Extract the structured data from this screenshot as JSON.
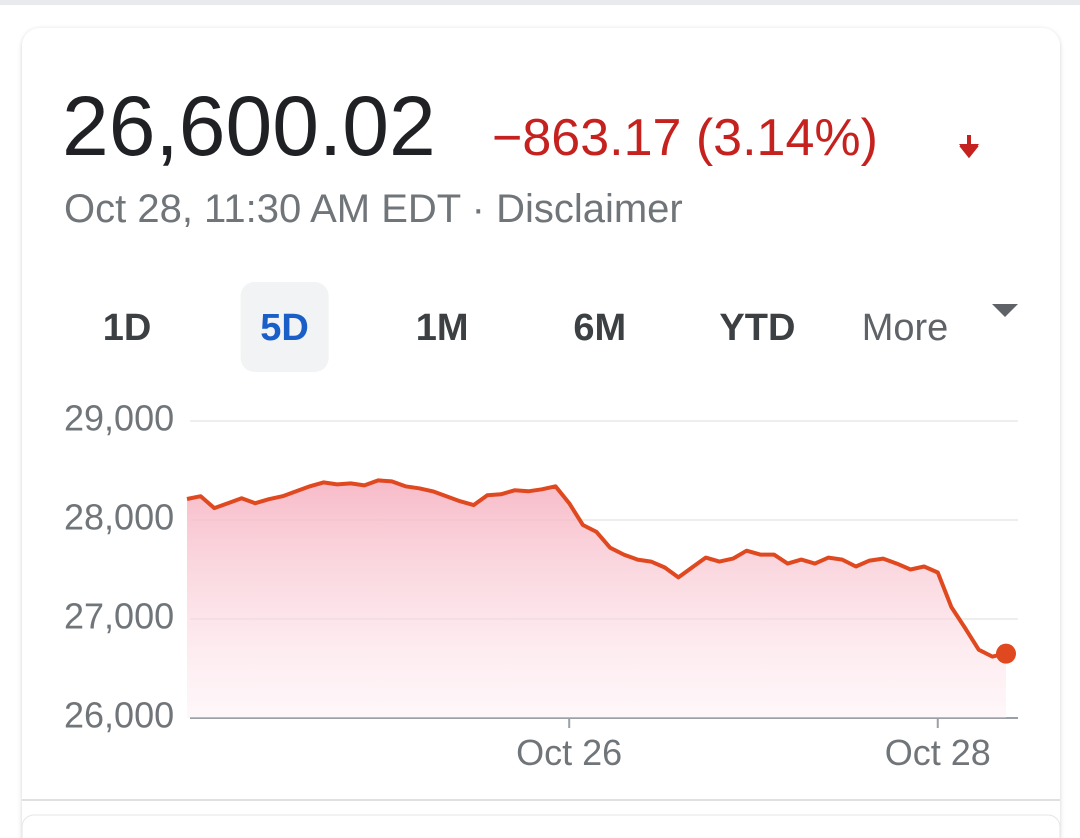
{
  "header": {
    "price": "26,600.02",
    "change": "−863.17 (3.14%)",
    "timestamp": "Oct 28, 11:30 AM EDT",
    "separator": "·",
    "disclaimer": "Disclaimer"
  },
  "tabs": [
    "1D",
    "5D",
    "1M",
    "6M",
    "YTD",
    "More"
  ],
  "selected_tab": 1,
  "chart_data": {
    "type": "line",
    "color": "#e0491f",
    "categories": [
      null,
      null,
      null,
      null,
      null,
      null,
      null,
      null,
      null,
      null,
      null,
      null,
      null,
      null,
      null,
      null,
      null,
      null,
      null,
      null,
      null,
      null,
      null,
      null,
      null,
      null,
      null,
      null,
      "Oct 26",
      null,
      null,
      null,
      null,
      null,
      null,
      null,
      null,
      null,
      null,
      null,
      null,
      null,
      null,
      null,
      null,
      null,
      null,
      null,
      null,
      null,
      null,
      null,
      null,
      null,
      null,
      "Oct 28",
      null,
      null,
      null,
      null,
      null
    ],
    "values": [
      28212,
      28240,
      28120,
      28170,
      28220,
      28170,
      28210,
      28240,
      28290,
      28340,
      28380,
      28360,
      28370,
      28350,
      28400,
      28390,
      28340,
      28320,
      28290,
      28240,
      28190,
      28150,
      28250,
      28260,
      28300,
      28290,
      28310,
      28340,
      28170,
      27950,
      27880,
      27720,
      27650,
      27600,
      27580,
      27520,
      27420,
      27520,
      27620,
      27580,
      27610,
      27690,
      27650,
      27650,
      27560,
      27600,
      27560,
      27620,
      27600,
      27530,
      27590,
      27610,
      27560,
      27500,
      27530,
      27470,
      27120,
      26910,
      26690,
      26620,
      26650
    ],
    "ylim": [
      26000,
      29000
    ],
    "yticks": [
      {
        "value": 26000,
        "label": "26,000"
      },
      {
        "value": 27000,
        "label": "27,000"
      },
      {
        "value": 28000,
        "label": "28,000"
      },
      {
        "value": 29000,
        "label": "29,000"
      }
    ],
    "grid": true
  }
}
